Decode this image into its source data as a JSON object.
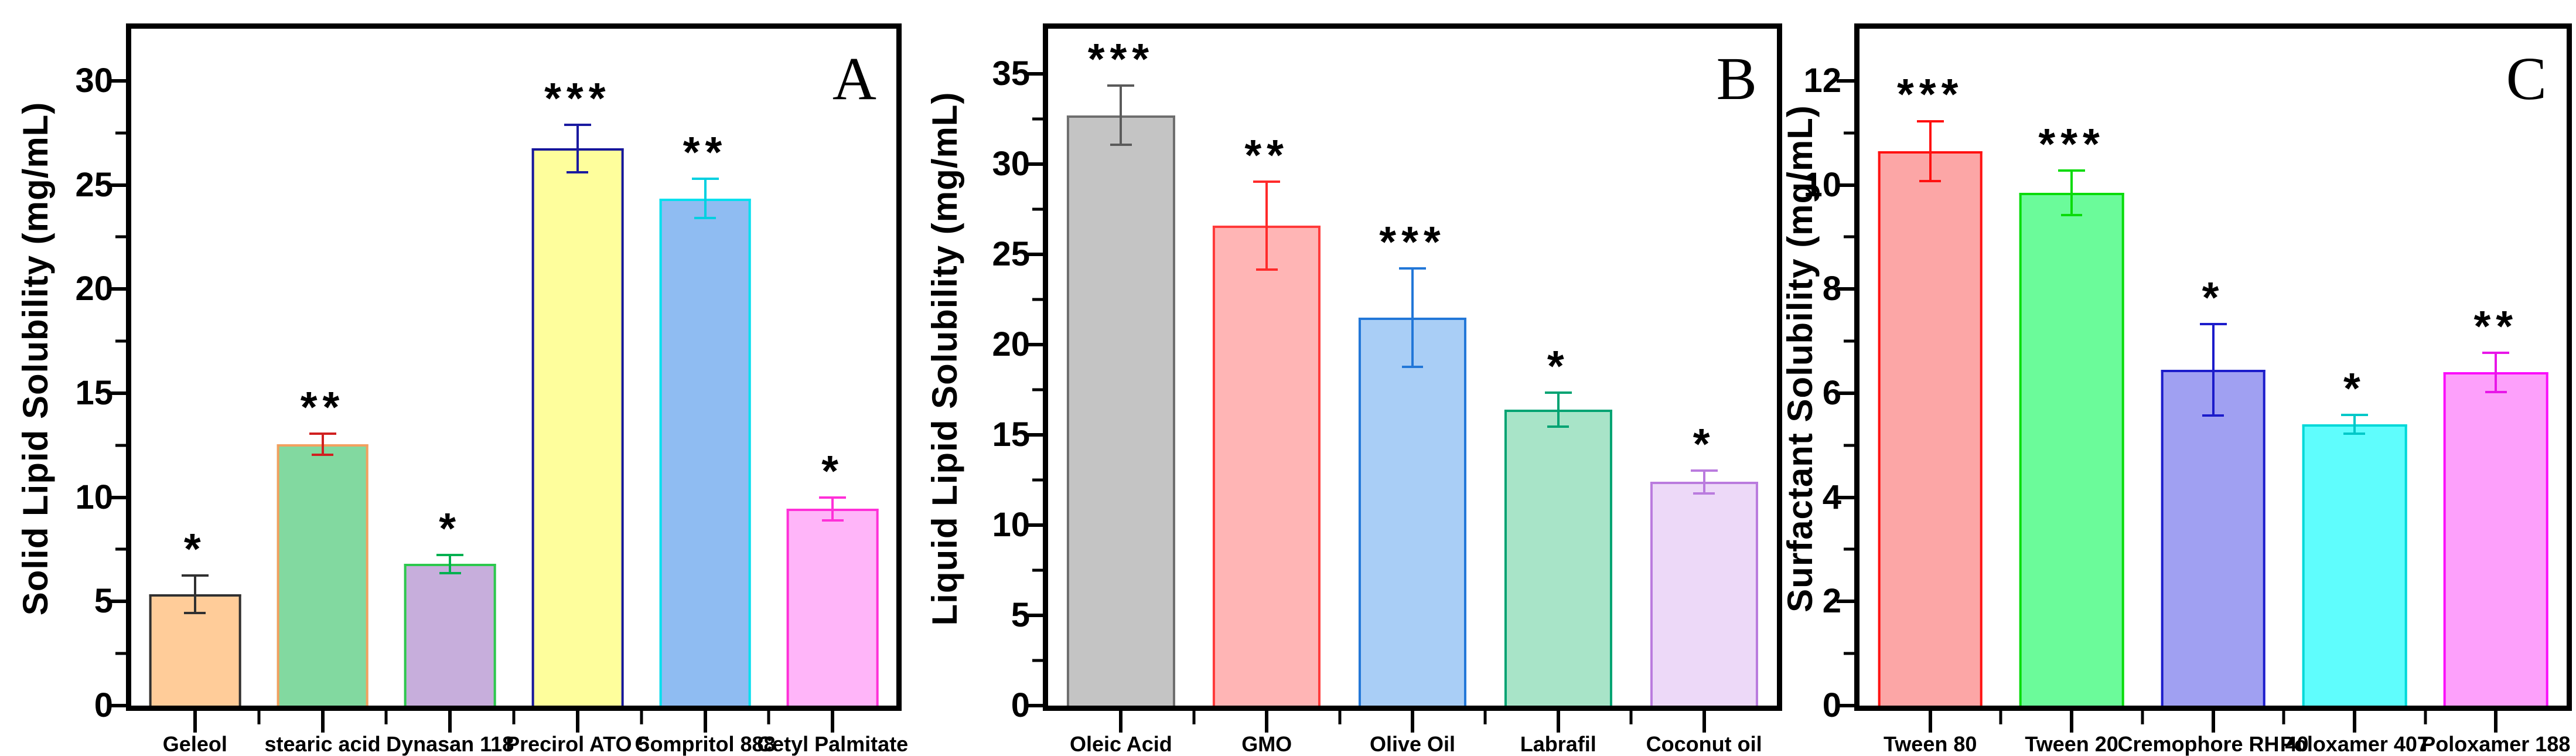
{
  "figure_colors": {
    "background": "#ffffff",
    "axis": "#000000",
    "significance_text": "#000000"
  },
  "chart_data": [
    {
      "type": "bar",
      "panel_label": "A",
      "ylabel": "Solid Lipid Solubility (mg/mL)",
      "xlabel": "",
      "title": "",
      "ylim": [
        0,
        32.5
      ],
      "yticks": [
        0,
        5,
        10,
        15,
        20,
        25,
        30
      ],
      "minor_tick_step": 2.5,
      "grid": false,
      "legend": null,
      "bar_width_ratio": 0.72,
      "categories": [
        "Geleol",
        "stearic acid",
        "Dynasan 118",
        "Precirol ATO 5",
        "Compritol 888",
        "Cetyl Palmitate"
      ],
      "bars": [
        {
          "category": "Geleol",
          "value": 5.35,
          "error": 0.95,
          "significance": "*",
          "fill": "#FFCC99",
          "edge": "#303030",
          "error_color": "#303030"
        },
        {
          "category": "stearic acid",
          "value": 12.55,
          "error": 0.55,
          "significance": "**",
          "fill": "#82D9A0",
          "edge": "#F2A05F",
          "error_color": "#D02020"
        },
        {
          "category": "Dynasan 118",
          "value": 6.8,
          "error": 0.5,
          "significance": "*",
          "fill": "#C7AEDC",
          "edge": "#2DC84D",
          "error_color": "#00B050"
        },
        {
          "category": "Precirol ATO 5",
          "value": 26.75,
          "error": 1.2,
          "significance": "***",
          "fill": "#FEFE9C",
          "edge": "#16169B",
          "error_color": "#1A1AA0"
        },
        {
          "category": "Compritol 888",
          "value": 24.35,
          "error": 1.0,
          "significance": "**",
          "fill": "#8FBCF2",
          "edge": "#00E0EE",
          "error_color": "#00D0E0"
        },
        {
          "category": "Cetyl Palmitate",
          "value": 9.45,
          "error": 0.6,
          "significance": "*",
          "fill": "#FFB5F9",
          "edge": "#FF30D8",
          "error_color": "#FF30D8"
        }
      ]
    },
    {
      "type": "bar",
      "panel_label": "B",
      "ylabel": "Liquid Lipid Solubility (mg/mL)",
      "xlabel": "",
      "title": "",
      "ylim": [
        0,
        37.5
      ],
      "yticks": [
        0,
        5,
        10,
        15,
        20,
        25,
        30,
        35
      ],
      "minor_tick_step": 2.5,
      "grid": false,
      "legend": null,
      "bar_width_ratio": 0.74,
      "categories": [
        "Oleic Acid",
        "GMO",
        "Olive Oil",
        "Labrafil",
        "Coconut oil"
      ],
      "bars": [
        {
          "category": "Oleic Acid",
          "value": 32.7,
          "error": 1.7,
          "significance": "***",
          "fill": "#C4C4C4",
          "edge": "#6E6E6E",
          "error_color": "#5A5A5A"
        },
        {
          "category": "GMO",
          "value": 26.6,
          "error": 2.5,
          "significance": "**",
          "fill": "#FFB5B5",
          "edge": "#FF3A3A",
          "error_color": "#FF2A2A"
        },
        {
          "category": "Olive Oil",
          "value": 21.5,
          "error": 2.8,
          "significance": "***",
          "fill": "#A9CEF6",
          "edge": "#2277D8",
          "error_color": "#2277D8"
        },
        {
          "category": "Labrafil",
          "value": 16.4,
          "error": 1.0,
          "significance": "*",
          "fill": "#A8E4C8",
          "edge": "#00A372",
          "error_color": "#00A372"
        },
        {
          "category": "Coconut oil",
          "value": 12.4,
          "error": 0.7,
          "significance": "*",
          "fill": "#EDD9F8",
          "edge": "#BA7BDE",
          "error_color": "#BA7BDE"
        }
      ]
    },
    {
      "type": "bar",
      "panel_label": "C",
      "ylabel": "Surfactant Solubility (mg/mL)",
      "xlabel": "",
      "title": "",
      "ylim": [
        0,
        13
      ],
      "yticks": [
        0,
        2,
        4,
        6,
        8,
        10,
        12
      ],
      "minor_tick_step": 1,
      "grid": false,
      "legend": null,
      "bar_width_ratio": 0.74,
      "categories": [
        "Tween 80",
        "Tween 20",
        "Cremophore RH 40",
        "Poloxamer 407",
        "Poloxamer 188"
      ],
      "bars": [
        {
          "category": "Tween 80",
          "value": 10.65,
          "error": 0.6,
          "significance": "***",
          "fill": "#FCA6A6",
          "edge": "#FF1111",
          "error_color": "#FF1111"
        },
        {
          "category": "Tween 20",
          "value": 9.85,
          "error": 0.45,
          "significance": "***",
          "fill": "#6BFB9A",
          "edge": "#0ADB0A",
          "error_color": "#0ADB0A"
        },
        {
          "category": "Cremophore RH 40",
          "value": 6.45,
          "error": 0.9,
          "significance": "*",
          "fill": "#A0A0F2",
          "edge": "#1C1CCB",
          "error_color": "#1C1CCB"
        },
        {
          "category": "Poloxamer 407",
          "value": 5.4,
          "error": 0.2,
          "significance": "*",
          "fill": "#5FFDFD",
          "edge": "#00D8D8",
          "error_color": "#00C8C8"
        },
        {
          "category": "Poloxamer 188",
          "value": 6.4,
          "error": 0.4,
          "significance": "**",
          "fill": "#FDA0FB",
          "edge": "#FB0DFB",
          "error_color": "#E816E8"
        }
      ]
    }
  ]
}
